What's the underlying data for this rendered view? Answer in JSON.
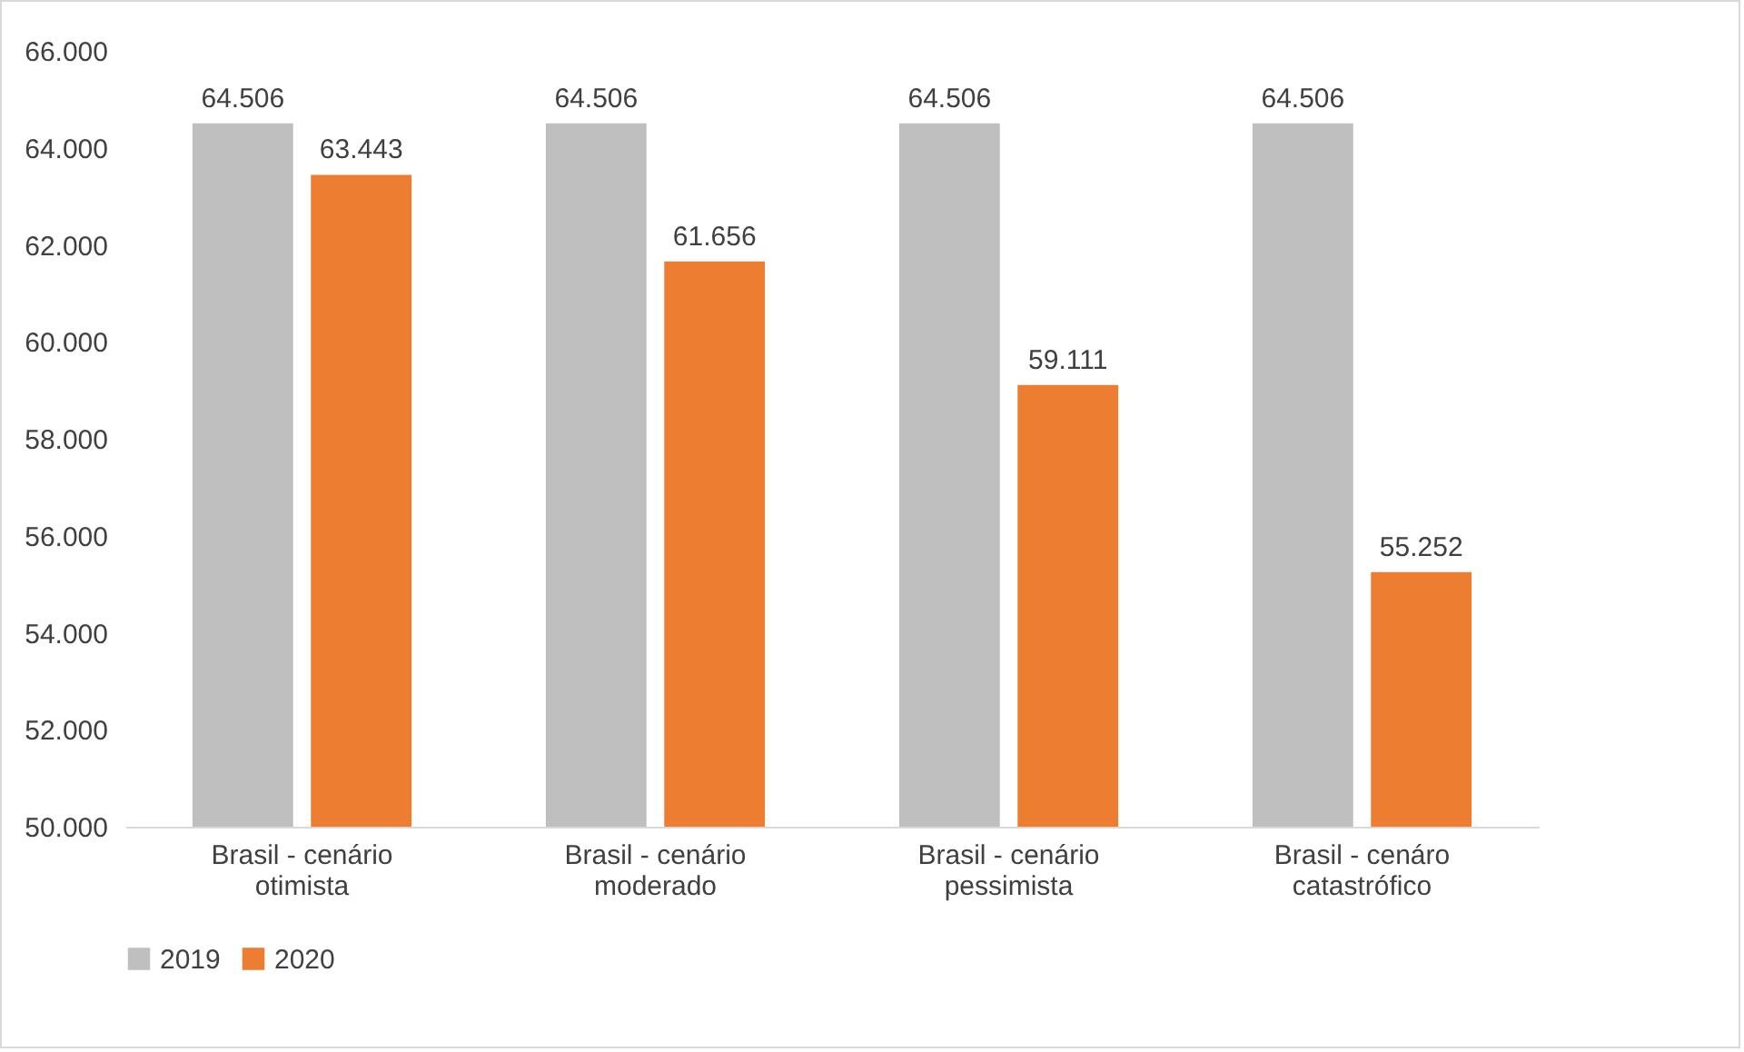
{
  "chart_data": {
    "type": "bar",
    "categories": [
      "Brasil - cenário otimista",
      "Brasil - cenário moderado",
      "Brasil - cenário pessimista",
      "Brasil - cenáro catastrófico"
    ],
    "series": [
      {
        "name": "2019",
        "color": "#bfbfbf",
        "values": [
          64506,
          64506,
          64506,
          64506
        ],
        "value_labels": [
          "64.506",
          "64.506",
          "64.506",
          "64.506"
        ]
      },
      {
        "name": "2020",
        "color": "#ed7d31",
        "values": [
          63443,
          61656,
          59111,
          55252
        ],
        "value_labels": [
          "63.443",
          "61.656",
          "59.111",
          "55.252"
        ]
      }
    ],
    "ylim": [
      50000,
      66000
    ],
    "yticks": [
      {
        "value": 50000,
        "label": "50.000"
      },
      {
        "value": 52000,
        "label": "52.000"
      },
      {
        "value": 54000,
        "label": "54.000"
      },
      {
        "value": 56000,
        "label": "56.000"
      },
      {
        "value": 58000,
        "label": "58.000"
      },
      {
        "value": 60000,
        "label": "60.000"
      },
      {
        "value": 62000,
        "label": "62.000"
      },
      {
        "value": 64000,
        "label": "64.000"
      },
      {
        "value": 66000,
        "label": "66.000"
      }
    ],
    "grid": false,
    "legend": "bottom"
  }
}
